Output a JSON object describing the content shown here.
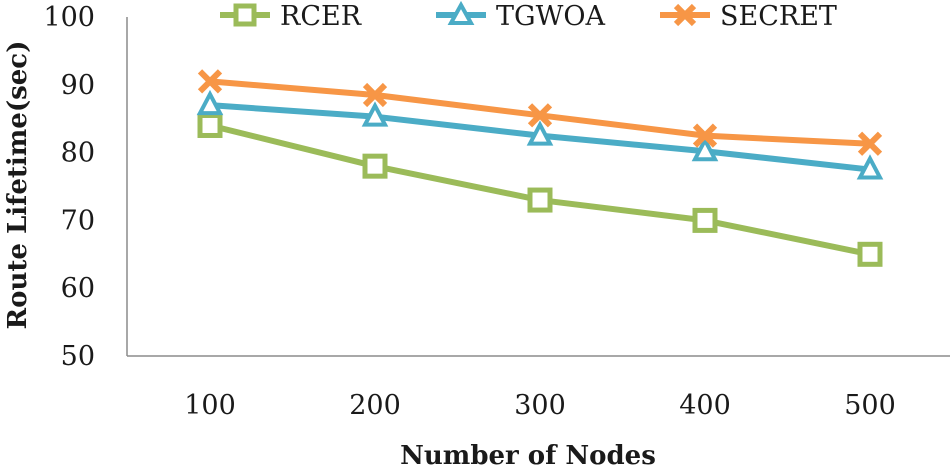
{
  "chart_data": {
    "type": "line",
    "title": "",
    "xlabel": "Number of Nodes",
    "ylabel": "Route Lifetime(sec)",
    "categories": [
      "100",
      "200",
      "300",
      "400",
      "500"
    ],
    "ylim": [
      50,
      100
    ],
    "yticks": [
      "50",
      "60",
      "70",
      "80",
      "90",
      "100"
    ],
    "grid": false,
    "legend_position": "top",
    "series": [
      {
        "name": "RCER",
        "values": [
          84,
          78,
          73,
          70,
          65
        ],
        "color": "#9BBB59",
        "marker": "square-icon"
      },
      {
        "name": "TGWOA",
        "values": [
          87,
          85.3,
          82.5,
          80.2,
          77.5
        ],
        "color": "#4BACC6",
        "marker": "triangle-icon"
      },
      {
        "name": "SECRET",
        "values": [
          90.5,
          88.5,
          85.5,
          82.5,
          81.3
        ],
        "color": "#F79646",
        "marker": "x-icon"
      }
    ]
  }
}
